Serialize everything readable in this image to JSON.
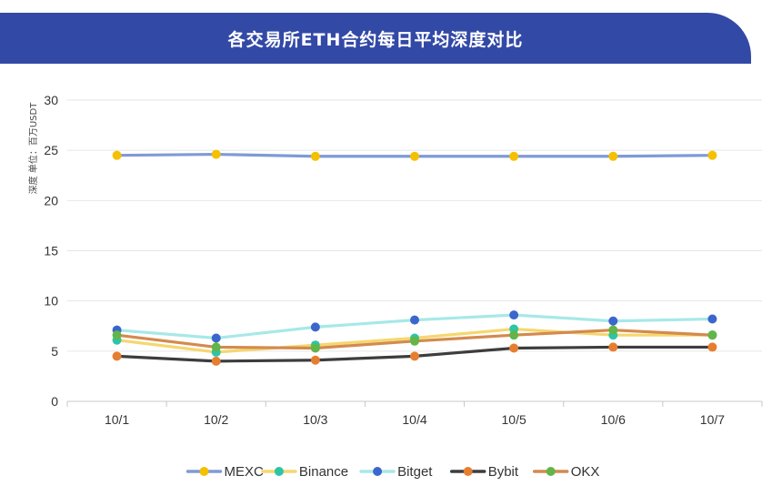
{
  "chart_data": {
    "type": "line",
    "title": "各交易所ETH合约每日平均深度对比",
    "ylabel": "深度 单位：百万USDT",
    "xlabel": "",
    "categories": [
      "10/1",
      "10/2",
      "10/3",
      "10/4",
      "10/5",
      "10/6",
      "10/7"
    ],
    "ylim": [
      0,
      30
    ],
    "yticks": [
      0,
      5,
      10,
      15,
      20,
      25,
      30
    ],
    "grid": true,
    "legend_position": "bottom",
    "series": [
      {
        "name": "MEXC",
        "values": [
          24.5,
          24.6,
          24.4,
          24.4,
          24.4,
          24.4,
          24.5
        ],
        "line_color": "#7f9ad6",
        "marker_color": "#f5c000"
      },
      {
        "name": "Binance",
        "values": [
          6.1,
          4.9,
          5.6,
          6.3,
          7.2,
          6.6,
          6.6
        ],
        "line_color": "#f5d76e",
        "marker_color": "#2ec4a6"
      },
      {
        "name": "Bitget",
        "values": [
          7.1,
          6.3,
          7.4,
          8.1,
          8.6,
          8.0,
          8.2
        ],
        "line_color": "#a8e8e8",
        "marker_color": "#3b66cc"
      },
      {
        "name": "Bybit",
        "values": [
          4.5,
          4.0,
          4.1,
          4.5,
          5.3,
          5.4,
          5.4
        ],
        "line_color": "#3d3d3d",
        "marker_color": "#e67e30"
      },
      {
        "name": "OKX",
        "values": [
          6.6,
          5.4,
          5.3,
          6.0,
          6.6,
          7.1,
          6.6
        ],
        "line_color": "#d48a4e",
        "marker_color": "#62b548"
      }
    ]
  }
}
